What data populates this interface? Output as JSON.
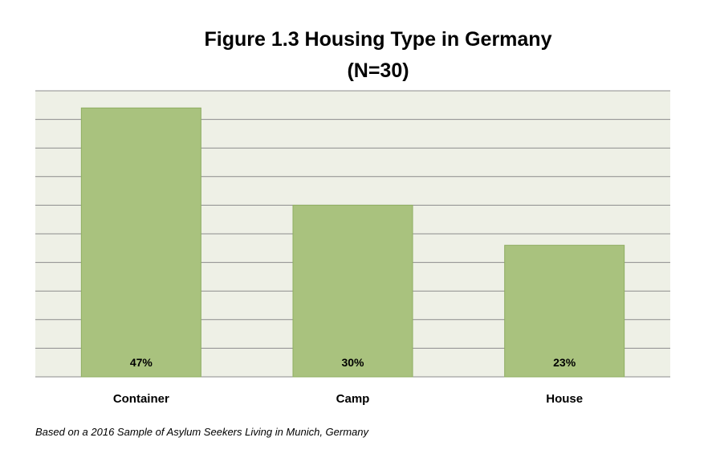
{
  "chart_data": {
    "type": "bar",
    "title": "Figure 1.3 Housing Type in Germany",
    "subtitle": "(N=30)",
    "categories": [
      "Container",
      "Camp",
      "House"
    ],
    "values": [
      47,
      30,
      23
    ],
    "data_labels": [
      "47%",
      "30%",
      "23%"
    ],
    "ylim": [
      0,
      50
    ],
    "grid": true,
    "gridline_count": 10,
    "colors": {
      "plot_background": "#eef0e6",
      "bar_fill": "#a9c27e",
      "bar_stroke": "#8fae62",
      "gridline": "#8c8c8c"
    }
  },
  "caption": "Based on a 2016 Sample of Asylum Seekers Living in Munich, Germany"
}
